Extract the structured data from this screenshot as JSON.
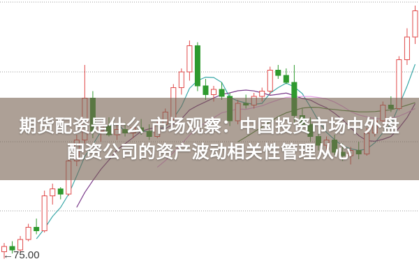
{
  "title": {
    "line1": "期货配资是什么 市场观察：中国投资市场中外盘",
    "line2": "配资公司的资产波动相关性管理从心"
  },
  "chart_data": {
    "type": "candlestick",
    "price_label": "75.00",
    "ylim": [
      73.68,
      89.72
    ],
    "grid": true,
    "colors": {
      "up": "#e04848",
      "down": "#2e9a2e",
      "ma5": "#3aa8a8",
      "ma10": "#7a3a8a",
      "ma20": "#e8a0e8",
      "ma30": "#4a8a3a",
      "grid": "#999999"
    },
    "moving_averages": [
      5,
      10,
      20,
      30
    ],
    "candles": [
      [
        75.3,
        75.8,
        74.9,
        75.6
      ],
      [
        75.6,
        75.9,
        75.2,
        75.4
      ],
      [
        75.4,
        76.2,
        75.3,
        76.0
      ],
      [
        76.0,
        76.9,
        75.9,
        76.7
      ],
      [
        76.7,
        77.2,
        76.3,
        76.5
      ],
      [
        76.5,
        78.8,
        76.4,
        78.5
      ],
      [
        78.5,
        79.2,
        78.0,
        78.9
      ],
      [
        78.9,
        79.0,
        78.3,
        78.6
      ],
      [
        78.6,
        80.8,
        78.5,
        80.5
      ],
      [
        80.5,
        82.0,
        80.2,
        81.7
      ],
      [
        81.7,
        86.0,
        81.5,
        84.1
      ],
      [
        84.1,
        84.5,
        81.8,
        82.2
      ],
      [
        82.2,
        82.8,
        81.6,
        82.5
      ],
      [
        82.5,
        83.0,
        81.9,
        82.0
      ],
      [
        82.0,
        82.6,
        81.7,
        82.3
      ],
      [
        82.3,
        82.7,
        81.9,
        82.1
      ],
      [
        82.1,
        82.5,
        81.8,
        82.4
      ],
      [
        82.4,
        82.9,
        82.0,
        82.2
      ],
      [
        82.2,
        82.6,
        81.7,
        81.9
      ],
      [
        81.9,
        82.8,
        81.8,
        82.6
      ],
      [
        82.6,
        83.5,
        82.4,
        83.3
      ],
      [
        82.9,
        84.9,
        82.8,
        84.7
      ],
      [
        84.7,
        85.8,
        84.3,
        85.6
      ],
      [
        85.6,
        87.4,
        85.1,
        87.1
      ],
      [
        87.1,
        87.3,
        84.5,
        84.8
      ],
      [
        84.8,
        85.2,
        84.0,
        84.3
      ],
      [
        84.3,
        84.8,
        83.9,
        84.6
      ],
      [
        84.6,
        85.0,
        84.0,
        84.2
      ],
      [
        84.2,
        84.4,
        82.5,
        82.8
      ],
      [
        82.8,
        84.0,
        82.6,
        83.8
      ],
      [
        83.8,
        84.3,
        83.5,
        83.7
      ],
      [
        83.7,
        84.4,
        83.5,
        84.2
      ],
      [
        84.2,
        84.7,
        83.9,
        84.5
      ],
      [
        84.5,
        85.9,
        84.3,
        85.7
      ],
      [
        85.7,
        86.0,
        85.2,
        85.4
      ],
      [
        85.4,
        85.8,
        84.9,
        85.0
      ],
      [
        85.0,
        86.0,
        82.7,
        83.1
      ],
      [
        83.1,
        83.5,
        82.3,
        82.6
      ],
      [
        82.6,
        83.0,
        81.6,
        81.9
      ],
      [
        81.9,
        82.3,
        81.1,
        81.4
      ],
      [
        81.4,
        81.9,
        80.9,
        81.7
      ],
      [
        81.7,
        82.0,
        80.8,
        81.0
      ],
      [
        81.0,
        81.5,
        80.5,
        80.8
      ],
      [
        80.8,
        81.3,
        80.3,
        81.1
      ],
      [
        81.1,
        81.6,
        80.6,
        80.9
      ],
      [
        80.9,
        82.4,
        80.8,
        82.1
      ],
      [
        82.1,
        83.0,
        81.9,
        82.8
      ],
      [
        82.8,
        83.9,
        82.6,
        83.7
      ],
      [
        83.7,
        84.2,
        83.3,
        83.5
      ],
      [
        83.5,
        86.5,
        83.4,
        86.3
      ],
      [
        86.3,
        88.1,
        86.0,
        87.6
      ],
      [
        87.6,
        89.4,
        87.2,
        89.1
      ]
    ]
  }
}
